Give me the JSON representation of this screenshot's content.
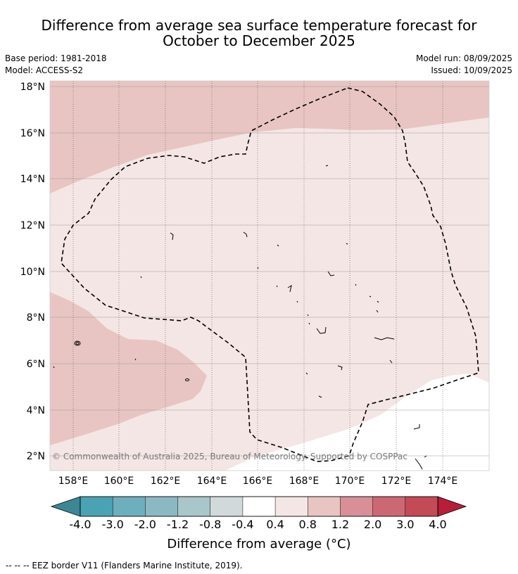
{
  "title_line1": "Difference from average sea surface temperature forecast for",
  "title_line2": "October to December 2025",
  "base_period": "Base period: 1981-2018",
  "model": "Model: ACCESS-S2",
  "model_run": "Model run: 08/09/2025",
  "issued": "Issued: 10/09/2025",
  "copyright": "© Commonwealth of Australia 2025, Bureau of Meteorology. Supported by COSPPac",
  "lat_labels": [
    "18°N",
    "16°N",
    "14°N",
    "12°N",
    "10°N",
    "8°N",
    "6°N",
    "4°N",
    "2°N"
  ],
  "lon_labels": [
    "158°E",
    "160°E",
    "162°E",
    "164°E",
    "166°E",
    "168°E",
    "170°E",
    "172°E",
    "174°E"
  ],
  "colorbar": {
    "label": "Difference from average (°C)",
    "ticks": [
      "-4.0",
      "-3.0",
      "-2.0",
      "-1.2",
      "-0.8",
      "-0.4",
      "0.4",
      "0.8",
      "1.2",
      "2.0",
      "3.0",
      "4.0"
    ],
    "colors": [
      "#4aa3b3",
      "#6eafbd",
      "#8ab9c3",
      "#a9c6ca",
      "#d1d9db",
      "#ffffff",
      "#f4e6e5",
      "#e8c5c2",
      "#d88f98",
      "#cc6874",
      "#c34a57"
    ],
    "under_color": "#3c8794",
    "over_color": "#b81e3a"
  },
  "eez_note": "--  --  -- EEZ border V11 (Flanders Marine Institute, 2019)."
}
